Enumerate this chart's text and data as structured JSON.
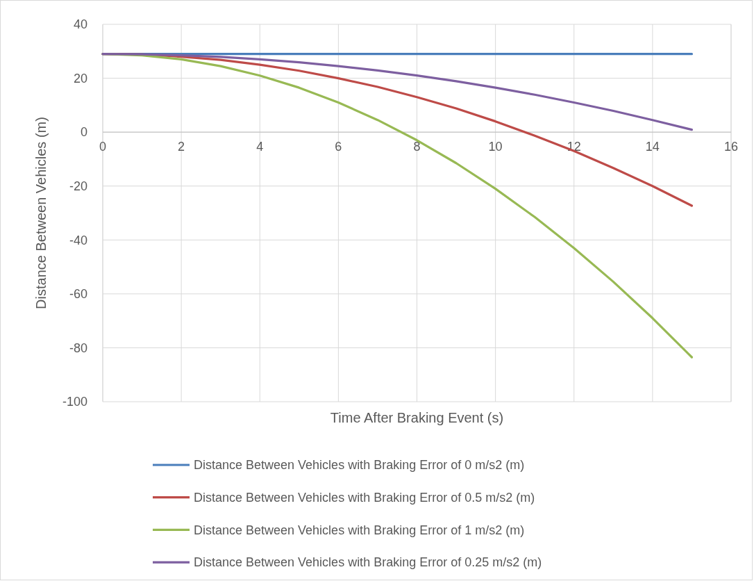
{
  "chart_data": {
    "type": "line",
    "xlabel": "Time After Braking Event (s)",
    "ylabel": "Distance Between Vehicles (m)",
    "x": [
      0,
      1,
      2,
      3,
      4,
      5,
      6,
      7,
      8,
      9,
      10,
      11,
      12,
      13,
      14,
      15
    ],
    "series": [
      {
        "name": "Distance Between Vehicles with Braking Error of 0 m/s2 (m)",
        "color": "#4a7ebb",
        "values": [
          29,
          29,
          29,
          29,
          29,
          29,
          29,
          29,
          29,
          29,
          29,
          29,
          29,
          29,
          29,
          29
        ]
      },
      {
        "name": "Distance Between Vehicles with Braking Error of 0.5 m/s2 (m)",
        "color": "#be4b48",
        "values": [
          29,
          28.8,
          28,
          26.8,
          25,
          22.8,
          20,
          16.8,
          13,
          8.8,
          4,
          -1.3,
          -7,
          -13.3,
          -20,
          -27.3
        ]
      },
      {
        "name": "Distance Between Vehicles with Braking Error of 1 m/s2 (m)",
        "color": "#98b954",
        "values": [
          29,
          28.5,
          27,
          24.5,
          21,
          16.5,
          11,
          4.5,
          -3,
          -11.5,
          -21,
          -31.5,
          -43,
          -55.5,
          -69,
          -83.5
        ]
      },
      {
        "name": "Distance Between Vehicles with Braking Error of 0.25 m/s2 (m)",
        "color": "#7d5fa0",
        "values": [
          29,
          28.9,
          28.5,
          27.9,
          27,
          25.9,
          24.5,
          22.9,
          21,
          18.9,
          16.5,
          13.9,
          11,
          7.9,
          4.5,
          0.9
        ]
      }
    ],
    "xlim": [
      0,
      16
    ],
    "xticks": [
      0,
      2,
      4,
      6,
      8,
      10,
      12,
      14,
      16
    ],
    "ylim": [
      -100,
      40
    ],
    "yticks": [
      -100,
      -80,
      -60,
      -40,
      -20,
      0,
      20,
      40
    ],
    "grid": true,
    "legend": "bottom",
    "marker": "none",
    "line_style": "solid"
  }
}
